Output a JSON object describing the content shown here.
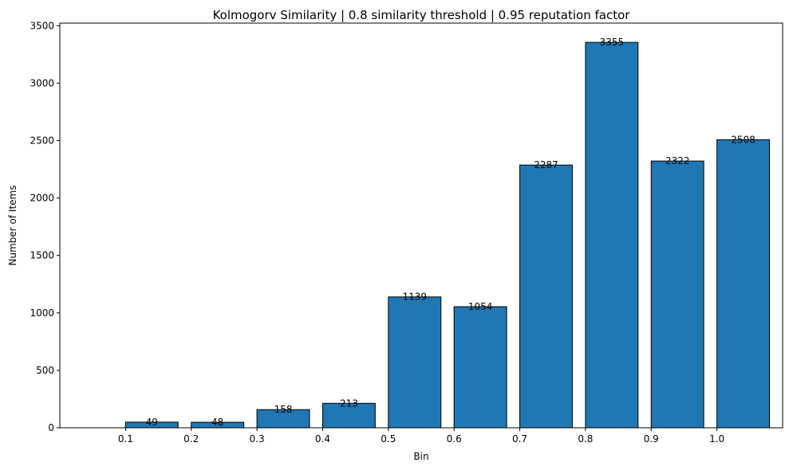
{
  "chart_data": {
    "type": "bar",
    "title": "Kolmogorv Similarity | 0.8 similarity threshold | 0.95 reputation factor",
    "xlabel": "Bin",
    "ylabel": "Number of Items",
    "categories": [
      "0.1",
      "0.2",
      "0.3",
      "0.4",
      "0.5",
      "0.6",
      "0.7",
      "0.8",
      "0.9",
      "1.0"
    ],
    "x_positions": [
      0.1,
      0.2,
      0.3,
      0.4,
      0.5,
      0.6,
      0.7,
      0.8,
      0.9,
      1.0
    ],
    "bar_width": 0.08,
    "values": [
      49,
      48,
      158,
      213,
      1139,
      1054,
      2287,
      3355,
      2322,
      2508
    ],
    "data_labels": [
      "49",
      "48",
      "158",
      "213",
      "1139",
      "1054",
      "2287",
      "3355",
      "2322",
      "2508"
    ],
    "xlim": [
      0.0,
      1.1
    ],
    "ylim": [
      0,
      3522.75
    ],
    "xticks": [
      "0.1",
      "0.2",
      "0.3",
      "0.4",
      "0.5",
      "0.6",
      "0.7",
      "0.8",
      "0.9",
      "1.0"
    ],
    "yticks": [
      "0",
      "500",
      "1000",
      "1500",
      "2000",
      "2500",
      "3000",
      "3500"
    ],
    "ytick_values": [
      0,
      500,
      1000,
      1500,
      2000,
      2500,
      3000,
      3500
    ],
    "grid": false,
    "legend": "none",
    "colors": {
      "bar_fill": "#1f77b4",
      "bar_edge": "#000000"
    }
  }
}
